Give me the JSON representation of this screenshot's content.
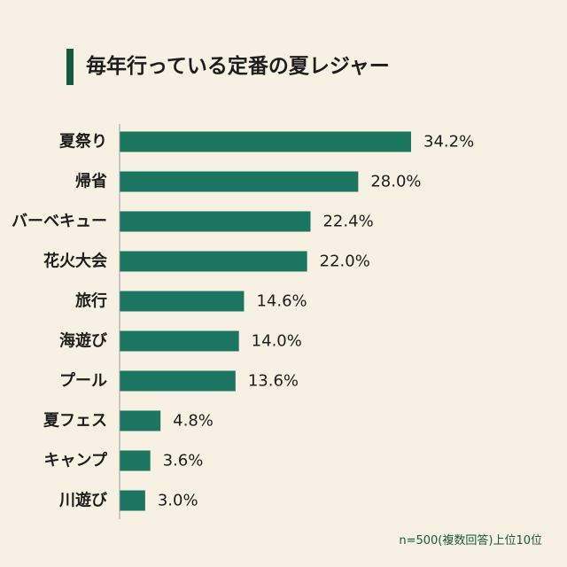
{
  "title": "毎年行っている定番の夏レジャー",
  "footnote": "n=500(複数回答)上位10位",
  "colors": {
    "background": "#f6f1e3",
    "bar": "#1b7560",
    "accent": "#17583e",
    "axis": "#9a9a9a",
    "text": "#1d1d1d"
  },
  "chart_data": {
    "type": "bar",
    "orientation": "horizontal",
    "categories": [
      "夏祭り",
      "帰省",
      "バーベキュー",
      "花火大会",
      "旅行",
      "海遊び",
      "プール",
      "夏フェス",
      "キャンプ",
      "川遊び"
    ],
    "values": [
      34.2,
      28.0,
      22.4,
      22.0,
      14.6,
      14.0,
      13.6,
      4.8,
      3.6,
      3.0
    ],
    "value_labels": [
      "34.2%",
      "28.0%",
      "22.4%",
      "22.0%",
      "14.6%",
      "14.0%",
      "13.6%",
      "4.8%",
      "3.6%",
      "3.0%"
    ],
    "title": "毎年行っている定番の夏レジャー",
    "xlabel": "",
    "ylabel": "",
    "unit": "%",
    "grid": false,
    "legend": "none"
  }
}
